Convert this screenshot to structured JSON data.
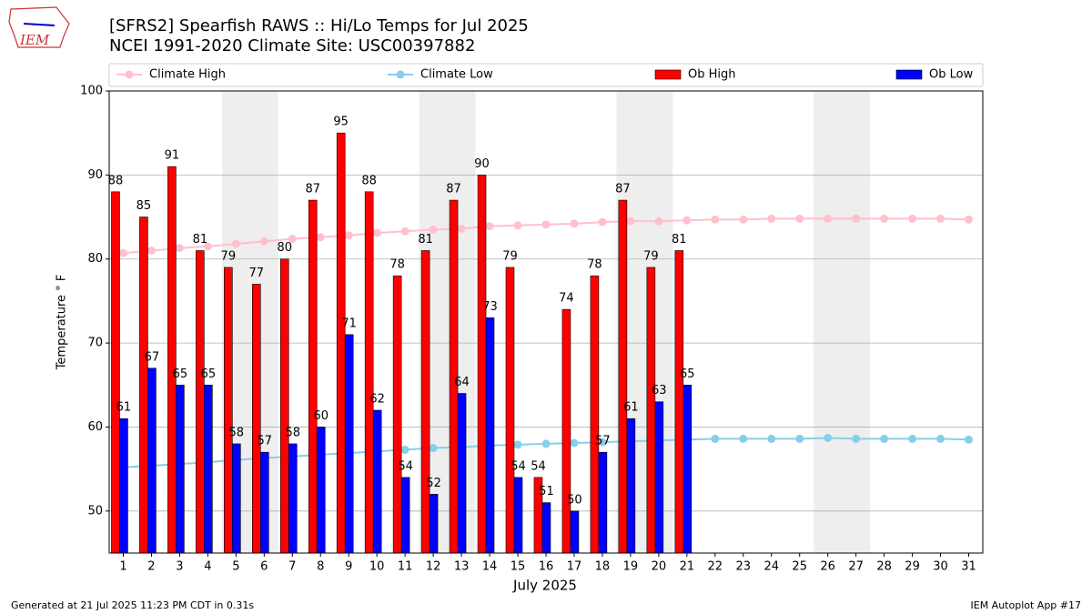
{
  "chart_data": {
    "type": "bar",
    "title": "[SFRS2] Spearfish RAWS :: Hi/Lo Temps for Jul 2025",
    "subtitle": "NCEI 1991-2020 Climate Site: USC00397882",
    "logo_text": "IEM",
    "xlabel": "July 2025",
    "ylabel": "Temperature ° F",
    "footer_left": "Generated at 21 Jul 2025 11:23 PM CDT in 0.31s",
    "footer_right": "IEM Autoplot App #17",
    "categories": [
      "1",
      "2",
      "3",
      "4",
      "5",
      "6",
      "7",
      "8",
      "9",
      "10",
      "11",
      "12",
      "13",
      "14",
      "15",
      "16",
      "17",
      "18",
      "19",
      "20",
      "21",
      "22",
      "23",
      "24",
      "25",
      "26",
      "27",
      "28",
      "29",
      "30",
      "31"
    ],
    "weekend_bands": [
      [
        4,
        5
      ],
      [
        11,
        12
      ],
      [
        18,
        19
      ],
      [
        25,
        26
      ]
    ],
    "ylim": [
      45,
      100
    ],
    "yticks": [
      50,
      60,
      70,
      80,
      90,
      100
    ],
    "grid": true,
    "series": [
      {
        "name": "Climate High",
        "kind": "line",
        "color": "#ffc0cb",
        "values": [
          80.7,
          81.0,
          81.3,
          81.5,
          81.8,
          82.1,
          82.4,
          82.6,
          82.8,
          83.1,
          83.3,
          83.5,
          83.6,
          83.9,
          84.0,
          84.1,
          84.2,
          84.4,
          84.5,
          84.5,
          84.6,
          84.7,
          84.7,
          84.8,
          84.8,
          84.8,
          84.8,
          84.8,
          84.8,
          84.8,
          84.7
        ]
      },
      {
        "name": "Climate Low",
        "kind": "line",
        "color": "#87ceeb",
        "values": [
          55.2,
          55.4,
          55.6,
          55.8,
          56.1,
          56.3,
          56.5,
          56.7,
          56.9,
          57.1,
          57.3,
          57.5,
          57.6,
          57.8,
          57.9,
          58.0,
          58.1,
          58.2,
          58.3,
          58.4,
          58.5,
          58.6,
          58.6,
          58.6,
          58.6,
          58.7,
          58.6,
          58.6,
          58.6,
          58.6,
          58.5
        ]
      },
      {
        "name": "Ob High",
        "kind": "bar",
        "color": "#ff0000",
        "values": [
          88,
          85,
          91,
          81,
          79,
          77,
          80,
          87,
          95,
          88,
          78,
          81,
          87,
          90,
          79,
          54,
          74,
          78,
          87,
          79,
          81,
          null,
          null,
          null,
          null,
          null,
          null,
          null,
          null,
          null,
          null
        ]
      },
      {
        "name": "Ob Low",
        "kind": "bar",
        "color": "#0000ff",
        "values": [
          61,
          67,
          65,
          65,
          58,
          57,
          58,
          60,
          71,
          62,
          54,
          52,
          64,
          73,
          54,
          51,
          50,
          57,
          61,
          63,
          65,
          null,
          null,
          null,
          null,
          null,
          null,
          null,
          null,
          null,
          null
        ]
      }
    ]
  }
}
